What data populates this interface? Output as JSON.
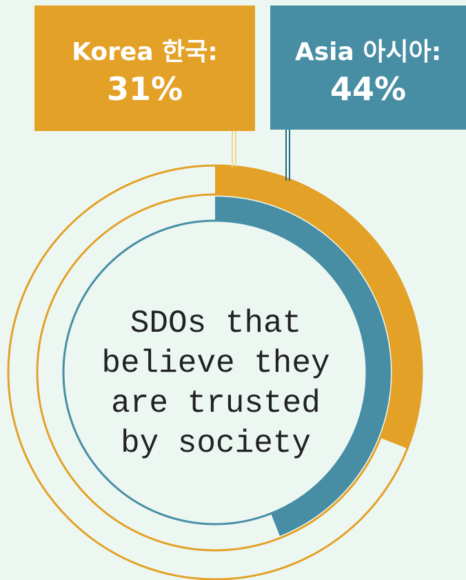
{
  "chart_data": {
    "type": "radial",
    "center_text": "SDOs that believe they are trusted by society",
    "ylim": [
      0,
      100
    ],
    "series": [
      {
        "name": "Korea 한국:",
        "color": "#e3a127",
        "values": [
          31
        ],
        "value_labels": [
          "31%"
        ]
      },
      {
        "name": "Asia 아시아:",
        "color": "#478ea4",
        "values": [
          44
        ],
        "value_labels": [
          "44%"
        ]
      }
    ]
  }
}
